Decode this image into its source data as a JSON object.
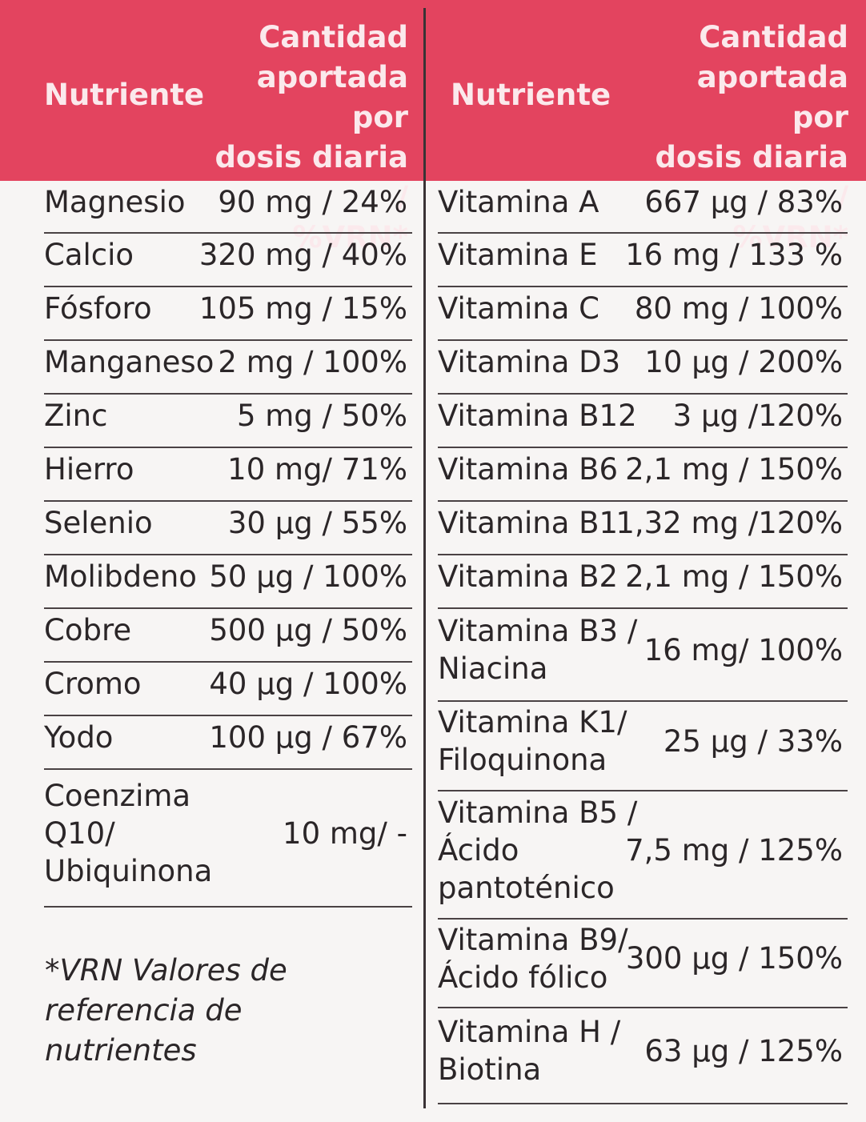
{
  "header": {
    "left_nutrient": "Nutriente",
    "left_amount_lines": [
      "Cantidad",
      "aportada por",
      "dosis diaria /",
      "%VRN*"
    ],
    "right_nutrient": "Nutriente",
    "right_amount_lines": [
      "Cantidad",
      "aportada por",
      "dosis diaria /",
      "%VRN*"
    ]
  },
  "left_rows": [
    {
      "name": [
        "Magnesio"
      ],
      "amount": "90 mg / 24%"
    },
    {
      "name": [
        "Calcio"
      ],
      "amount": "320 mg / 40%"
    },
    {
      "name": [
        "Fósforo"
      ],
      "amount": "105 mg / 15%"
    },
    {
      "name": [
        "Manganeso"
      ],
      "amount": "2 mg / 100%"
    },
    {
      "name": [
        "Zinc"
      ],
      "amount": "5 mg / 50%"
    },
    {
      "name": [
        "Hierro"
      ],
      "amount": "10 mg/ 71%"
    },
    {
      "name": [
        "Selenio"
      ],
      "amount": "30 µg / 55%"
    },
    {
      "name": [
        "Molibdeno"
      ],
      "amount": "50 µg / 100%"
    },
    {
      "name": [
        "Cobre"
      ],
      "amount": "500 µg / 50%"
    },
    {
      "name": [
        "Cromo"
      ],
      "amount": "40 µg / 100%"
    },
    {
      "name": [
        "Yodo"
      ],
      "amount": "100 µg / 67%"
    },
    {
      "name": [
        "Coenzima",
        "Q10/",
        "Ubiquinona"
      ],
      "amount": "10 mg/ -"
    }
  ],
  "right_rows": [
    {
      "name": [
        "Vitamina A"
      ],
      "amount": "667 µg / 83%"
    },
    {
      "name": [
        "Vitamina E"
      ],
      "amount": "16 mg / 133 %"
    },
    {
      "name": [
        "Vitamina C"
      ],
      "amount": "80 mg / 100%"
    },
    {
      "name": [
        "Vitamina D3"
      ],
      "amount": "10 µg / 200%"
    },
    {
      "name": [
        "Vitamina B12"
      ],
      "amount": "3 µg /120%"
    },
    {
      "name": [
        "Vitamina B6"
      ],
      "amount": "2,1 mg / 150%"
    },
    {
      "name": [
        "Vitamina B1"
      ],
      "amount": "1,32 mg /120%"
    },
    {
      "name": [
        "Vitamina B2"
      ],
      "amount": "2,1 mg / 150%"
    },
    {
      "name": [
        "Vitamina B3 /",
        "Niacina"
      ],
      "amount": "16 mg/ 100%"
    },
    {
      "name": [
        "Vitamina K1/",
        "Filoquinona"
      ],
      "amount": "25 µg / 33%"
    },
    {
      "name": [
        "Vitamina B5 /",
        "Ácido",
        "pantoténico"
      ],
      "amount": "7,5 mg / 125%"
    },
    {
      "name": [
        "Vitamina B9/",
        "Ácido fólico"
      ],
      "amount": "300 µg / 150%"
    },
    {
      "name": [
        "Vitamina H /",
        "Biotina"
      ],
      "amount": "63 µg / 125%"
    }
  ],
  "footnote_lines": [
    "*VRN Valores de",
    "referencia de",
    "nutrientes"
  ]
}
